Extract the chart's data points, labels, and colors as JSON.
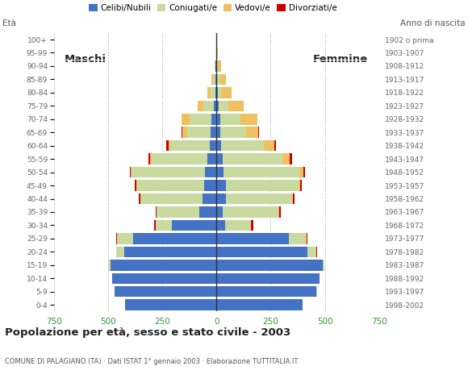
{
  "title": "Popolazione per età, sesso e stato civile - 2003",
  "subtitle": "COMUNE DI PALAGIANO (TA) · Dati ISTAT 1° gennaio 2003 · Elaborazione TUTTITALIA.IT",
  "age_label": "Età",
  "birth_label": "Anno di nascita",
  "maschi_label": "Maschi",
  "femmine_label": "Femmine",
  "age_groups": [
    "0-4",
    "5-9",
    "10-14",
    "15-19",
    "20-24",
    "25-29",
    "30-34",
    "35-39",
    "40-44",
    "45-49",
    "50-54",
    "55-59",
    "60-64",
    "65-69",
    "70-74",
    "75-79",
    "80-84",
    "85-89",
    "90-94",
    "95-99",
    "100+"
  ],
  "birth_years": [
    "1998-2002",
    "1993-1997",
    "1988-1992",
    "1983-1987",
    "1978-1982",
    "1973-1977",
    "1968-1972",
    "1963-1967",
    "1958-1962",
    "1953-1957",
    "1948-1952",
    "1943-1947",
    "1938-1942",
    "1933-1937",
    "1928-1932",
    "1923-1927",
    "1918-1922",
    "1913-1917",
    "1908-1912",
    "1903-1907",
    "1902 o prima"
  ],
  "legend_labels": [
    "Celibi/Nubili",
    "Coniugati/e",
    "Vedovi/e",
    "Divorziati/e"
  ],
  "colors": {
    "celibi": "#4472C4",
    "coniugati": "#c8daa0",
    "vedovi": "#f0c060",
    "divorziati": "#cc0000"
  },
  "maschi": {
    "celibi": [
      420,
      470,
      480,
      490,
      425,
      385,
      205,
      80,
      65,
      55,
      52,
      42,
      32,
      28,
      25,
      12,
      5,
      5,
      3,
      2,
      2
    ],
    "coniugati": [
      0,
      1,
      2,
      8,
      38,
      75,
      75,
      195,
      285,
      312,
      338,
      258,
      182,
      108,
      98,
      48,
      22,
      12,
      4,
      0,
      0
    ],
    "vedovi": [
      0,
      0,
      0,
      0,
      0,
      0,
      1,
      1,
      2,
      2,
      4,
      6,
      8,
      22,
      38,
      28,
      15,
      5,
      2,
      0,
      0
    ],
    "divorziati": [
      0,
      0,
      0,
      0,
      0,
      2,
      5,
      3,
      5,
      8,
      4,
      8,
      8,
      2,
      0,
      0,
      0,
      0,
      0,
      0,
      0
    ]
  },
  "femmine": {
    "nubili": [
      398,
      462,
      475,
      490,
      420,
      335,
      40,
      28,
      42,
      42,
      32,
      28,
      22,
      18,
      18,
      12,
      5,
      4,
      3,
      2,
      2
    ],
    "coniugati": [
      0,
      1,
      2,
      8,
      42,
      78,
      118,
      258,
      305,
      335,
      350,
      278,
      198,
      118,
      92,
      42,
      18,
      12,
      4,
      0,
      0
    ],
    "vedovi": [
      0,
      0,
      0,
      0,
      0,
      1,
      2,
      2,
      4,
      8,
      18,
      32,
      48,
      58,
      78,
      72,
      48,
      28,
      14,
      4,
      2
    ],
    "divorziati": [
      0,
      0,
      0,
      0,
      2,
      5,
      10,
      10,
      8,
      10,
      8,
      10,
      8,
      2,
      0,
      0,
      0,
      0,
      0,
      0,
      0
    ]
  },
  "xlim": 750,
  "background_color": "#ffffff"
}
